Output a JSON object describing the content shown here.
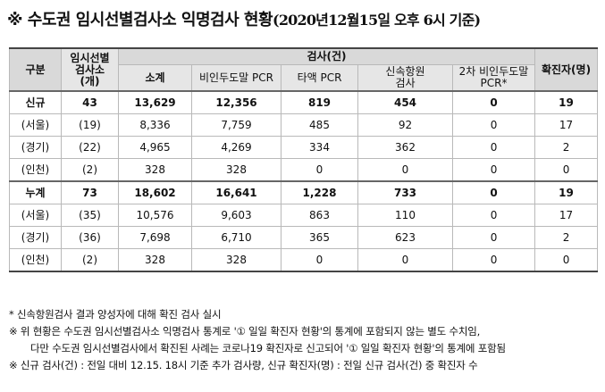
{
  "title": {
    "mark": "※",
    "main": "수도권 임시선별검사소 익명검사 현황",
    "date": "(2020년12월15일 오후 6시 기준)"
  },
  "table": {
    "headers": {
      "gubun": "구분",
      "sites": "임시선별\n검사소\n(개)",
      "tests_group": "검사(건)",
      "confirmed": "확진자(명)",
      "subtotal": "소계",
      "anonymous_pcr": "비인두도말 PCR",
      "saliva_pcr": "타액 PCR",
      "rapid_antigen": "신속항원\n검사",
      "second_pcr": "2차 비인두도말\nPCR*"
    },
    "rows": [
      {
        "label": "신규",
        "sites": "43",
        "subtotal": "13,629",
        "np": "12,356",
        "saliva": "819",
        "rapid": "454",
        "second": "0",
        "confirmed": "19",
        "bold": true,
        "first": true
      },
      {
        "label": "(서울)",
        "sites": "(19)",
        "subtotal": "8,336",
        "np": "7,759",
        "saliva": "485",
        "rapid": "92",
        "second": "0",
        "confirmed": "17"
      },
      {
        "label": "(경기)",
        "sites": "(22)",
        "subtotal": "4,965",
        "np": "4,269",
        "saliva": "334",
        "rapid": "362",
        "second": "0",
        "confirmed": "2"
      },
      {
        "label": "(인천)",
        "sites": "(2)",
        "subtotal": "328",
        "np": "328",
        "saliva": "0",
        "rapid": "0",
        "second": "0",
        "confirmed": "0"
      },
      {
        "label": "누계",
        "sites": "73",
        "subtotal": "18,602",
        "np": "16,641",
        "saliva": "1,228",
        "rapid": "733",
        "second": "0",
        "confirmed": "19",
        "bold": true,
        "first": true
      },
      {
        "label": "(서울)",
        "sites": "(35)",
        "subtotal": "10,576",
        "np": "9,603",
        "saliva": "863",
        "rapid": "110",
        "second": "0",
        "confirmed": "17"
      },
      {
        "label": "(경기)",
        "sites": "(36)",
        "subtotal": "7,698",
        "np": "6,710",
        "saliva": "365",
        "rapid": "623",
        "second": "0",
        "confirmed": "2"
      },
      {
        "label": "(인천)",
        "sites": "(2)",
        "subtotal": "328",
        "np": "328",
        "saliva": "0",
        "rapid": "0",
        "second": "0",
        "confirmed": "0"
      }
    ]
  },
  "notes": [
    "* 신속항원검사 결과 양성자에 대해 확진 검사 실시",
    "※ 위 현황은 수도권 임시선별검사소 익명검사 통계로 '① 일일 확진자 현황'의 통계에 포함되지 않는 별도 수치임,",
    "다만 수도권 임시선별검사에서 확진된 사례는 코로나19 확진자로 신고되어 '① 일일 확진자 현황'의 통계에 포함됨",
    "※ 신규 검사(건) : 전일 대비 12.15. 18시 기준 추가 검사량, 신규 확진자(명) : 전일 신규 검사(건) 중 확진자 수"
  ]
}
